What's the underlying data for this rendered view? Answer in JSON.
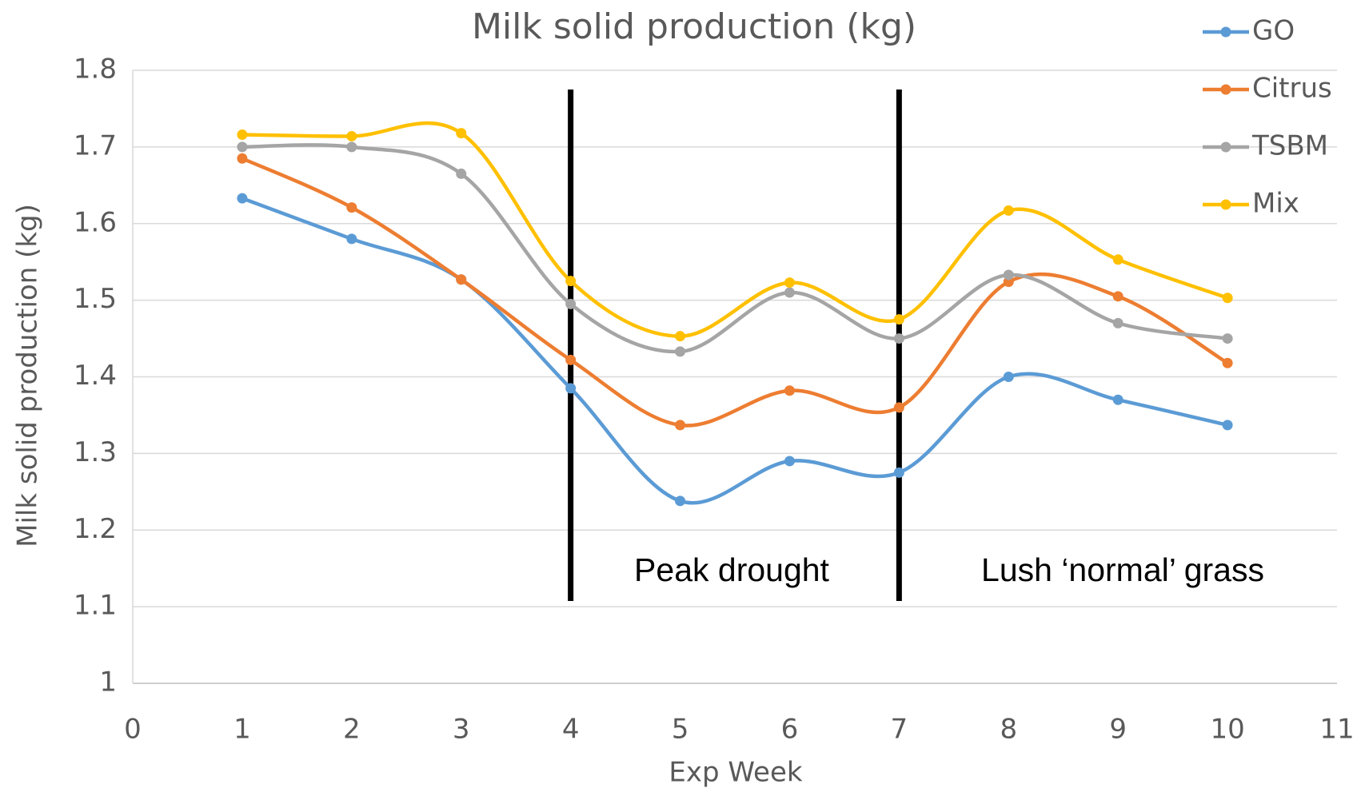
{
  "chart_data": {
    "type": "line",
    "title": "Milk solid production (kg)",
    "x_label": "Exp Week",
    "y_label": "Milk solid production (kg)",
    "x": [
      1,
      2,
      3,
      4,
      5,
      6,
      7,
      8,
      9,
      10
    ],
    "series": [
      {
        "name": "GO",
        "color": "#5b9bd5",
        "values": [
          1.633,
          1.58,
          1.527,
          1.385,
          1.238,
          1.29,
          1.275,
          1.4,
          1.37,
          1.337
        ]
      },
      {
        "name": "Citrus",
        "color": "#ed7d31",
        "values": [
          1.685,
          1.621,
          1.527,
          1.422,
          1.337,
          1.382,
          1.36,
          1.524,
          1.505,
          1.418
        ]
      },
      {
        "name": "TSBM",
        "color": "#a5a5a5",
        "values": [
          1.7,
          1.7,
          1.665,
          1.495,
          1.433,
          1.51,
          1.45,
          1.533,
          1.47,
          1.45
        ]
      },
      {
        "name": "Mix",
        "color": "#ffc000",
        "values": [
          1.716,
          1.714,
          1.718,
          1.525,
          1.453,
          1.523,
          1.475,
          1.617,
          1.553,
          1.503
        ]
      }
    ],
    "xlim": [
      0,
      11
    ],
    "xticks": [
      0,
      1,
      2,
      3,
      4,
      5,
      6,
      7,
      8,
      9,
      10,
      11
    ],
    "ylim": [
      1,
      1.8
    ],
    "yticks": [
      1,
      1.1,
      1.2,
      1.3,
      1.4,
      1.5,
      1.6,
      1.7,
      1.8
    ],
    "grid": true,
    "legend": "right",
    "smooth": true,
    "vlines": [
      4,
      7
    ],
    "annotations": [
      "Peak drought",
      "Lush ‘normal’ grass"
    ]
  }
}
